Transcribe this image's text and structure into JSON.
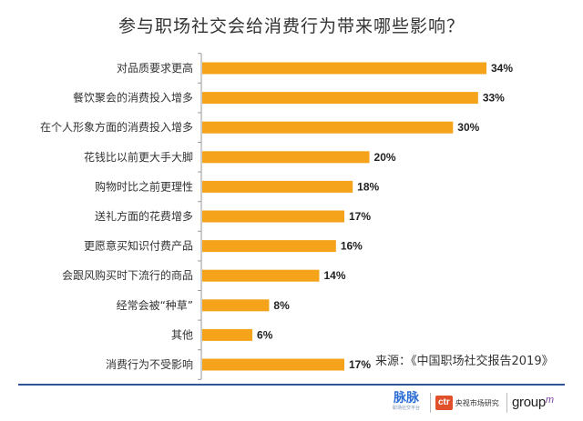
{
  "chart_data": {
    "type": "bar",
    "orientation": "horizontal",
    "title": "参与职场社交会给消费行为带来哪些影响？",
    "categories": [
      "对品质要求更高",
      "餐饮聚会的消费投入增多",
      "在个人形象方面的消费投入增多",
      "花钱比以前更大手大脚",
      "购物时比之前更理性",
      "送礼方面的花费增多",
      "更愿意买知识付费产品",
      "会跟风购买时下流行的商品",
      "经常会被“种草”",
      "其他",
      "消费行为不受影响"
    ],
    "values": [
      34,
      33,
      30,
      20,
      18,
      17,
      16,
      14,
      8,
      6,
      17
    ],
    "value_labels": [
      "34%",
      "33%",
      "30%",
      "20%",
      "18%",
      "17%",
      "16%",
      "14%",
      "8%",
      "6%",
      "17%"
    ],
    "unit": "%",
    "bar_color": "#f5a31a",
    "axis_color": "#999999",
    "grid": false,
    "xlim": [
      0,
      34
    ]
  },
  "source": "来源：《中国职场社交报告2019》",
  "footer": {
    "maimai": "脉脉",
    "maimai_sub": "职场社交平台",
    "ctr_badge": "ctr",
    "ctr_text": "央视市场研究",
    "groupm": "group",
    "groupm_mark": "m"
  },
  "footer_line_color": "#2f5597"
}
